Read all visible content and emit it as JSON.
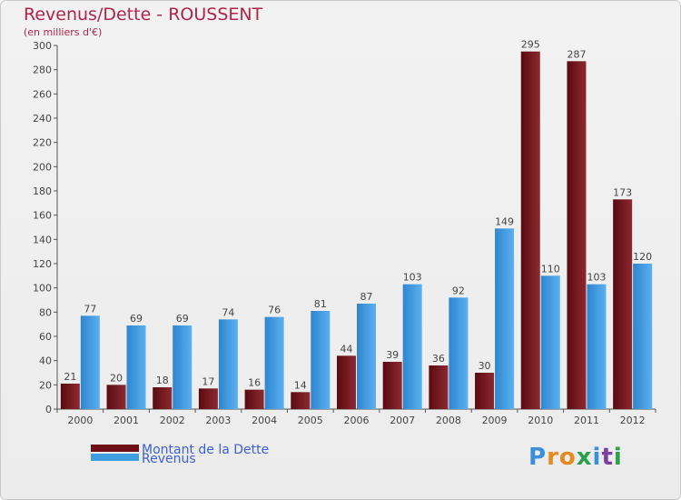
{
  "header": {
    "title": "Revenus/Dette - ROUSSENT",
    "subtitle": "(en milliers d'€)"
  },
  "chart_data": {
    "type": "bar",
    "title": "Revenus/Dette - ROUSSENT",
    "ylabel": "(en milliers d'€)",
    "xlabel": "",
    "categories": [
      "2000",
      "2001",
      "2002",
      "2003",
      "2004",
      "2005",
      "2006",
      "2007",
      "2008",
      "2009",
      "2010",
      "2011",
      "2012"
    ],
    "series": [
      {
        "name": "Montant de la Dette",
        "color": "#7a1a20",
        "values": [
          21,
          20,
          18,
          17,
          16,
          14,
          44,
          39,
          36,
          30,
          295,
          287,
          173
        ]
      },
      {
        "name": "Revenus",
        "color": "#3f9ee0",
        "values": [
          77,
          69,
          69,
          74,
          76,
          81,
          87,
          103,
          92,
          149,
          110,
          103,
          120
        ]
      }
    ],
    "ylim": [
      0,
      300
    ],
    "yticks": [
      0,
      20,
      40,
      60,
      80,
      100,
      120,
      140,
      160,
      180,
      200,
      220,
      240,
      260,
      280,
      300
    ],
    "grid": false,
    "legend_position": "bottom-left",
    "data_labels": true
  },
  "legend": {
    "items": [
      {
        "label": "Montant de la Dette",
        "color": "#6b0f14"
      },
      {
        "label": "Revenus",
        "color": "#3f9ee0"
      }
    ]
  },
  "logo": {
    "text": "Proxiti",
    "letters": [
      "P",
      "r",
      "o",
      "x",
      "i",
      "t",
      "i"
    ],
    "colors": [
      "#3b8fd9",
      "#e68a1e",
      "#e68a1e",
      "#2aa14a",
      "#3b8fd9",
      "#7b3fa0",
      "#2aa14a"
    ]
  }
}
